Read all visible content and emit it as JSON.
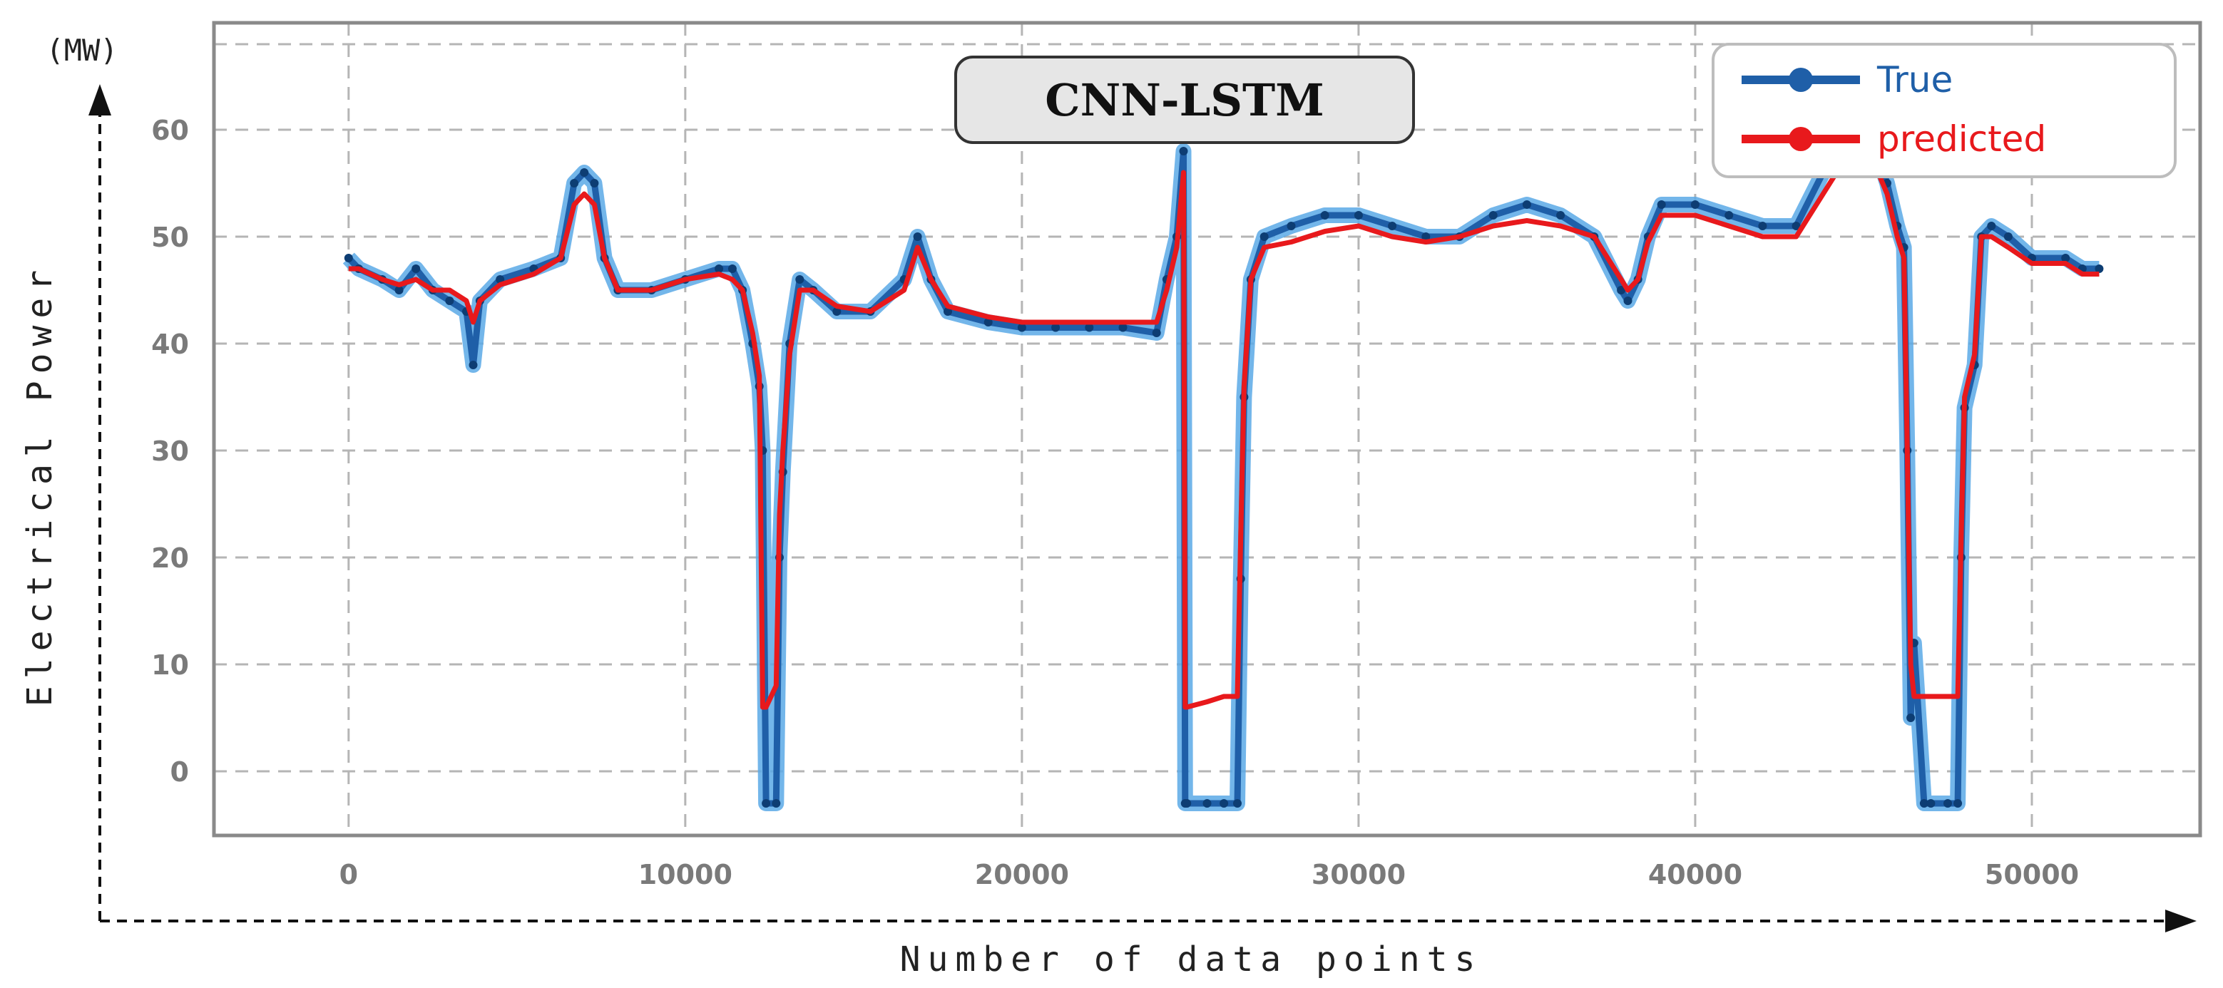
{
  "chart_data": {
    "type": "line",
    "title": "CNN-LSTM",
    "xlabel": "Number of data points",
    "ylabel": "Electrical Power",
    "unit": "(MW)",
    "xlim": [
      -4000,
      55000
    ],
    "ylim": [
      -6,
      70
    ],
    "x_ticks": [
      0,
      10000,
      20000,
      30000,
      40000,
      50000
    ],
    "y_ticks": [
      0,
      10,
      20,
      30,
      40,
      50,
      60
    ],
    "grid": true,
    "legend_position": "top-right",
    "series": [
      {
        "name": "True",
        "color": "#1f5fa8",
        "x": [
          0,
          300,
          1000,
          1500,
          2000,
          2500,
          3000,
          3500,
          3700,
          3900,
          4500,
          5500,
          6300,
          6700,
          7000,
          7300,
          7600,
          8000,
          9000,
          10000,
          11000,
          11400,
          11700,
          12000,
          12200,
          12300,
          12400,
          12700,
          12800,
          12900,
          13100,
          13400,
          13800,
          14500,
          15500,
          16500,
          16900,
          17300,
          17800,
          19000,
          20000,
          21000,
          22000,
          23000,
          24000,
          24300,
          24600,
          24800,
          24850,
          24900,
          25500,
          26000,
          26400,
          26500,
          26600,
          26800,
          27200,
          28000,
          29000,
          30000,
          31000,
          32000,
          33000,
          34000,
          35000,
          36000,
          37000,
          37800,
          38000,
          38300,
          38600,
          39000,
          40000,
          41000,
          42000,
          43000,
          43800,
          44200,
          44800,
          45300,
          45700,
          46000,
          46200,
          46300,
          46400,
          46500,
          46800,
          47000,
          47500,
          47800,
          47900,
          48000,
          48300,
          48500,
          48800,
          49300,
          50000,
          51000,
          51500,
          52000
        ],
        "y": [
          48,
          47,
          46,
          45,
          47,
          45,
          44,
          43,
          38,
          44,
          46,
          47,
          48,
          55,
          56,
          55,
          48,
          45,
          45,
          46,
          47,
          47,
          45,
          40,
          36,
          30,
          -3,
          -3,
          20,
          28,
          40,
          46,
          45,
          43,
          43,
          46,
          50,
          46,
          43,
          42,
          41.5,
          41.5,
          41.5,
          41.5,
          41,
          46,
          50,
          58,
          -3,
          -3,
          -3,
          -3,
          -3,
          18,
          35,
          46,
          50,
          51,
          52,
          52,
          51,
          50,
          50,
          52,
          53,
          52,
          50,
          45,
          44,
          46,
          50,
          53,
          53,
          52,
          51,
          51,
          56,
          58,
          60,
          59,
          55,
          51,
          49,
          30,
          5,
          12,
          -3,
          -3,
          -3,
          -3,
          20,
          34,
          38,
          50,
          51,
          50,
          48,
          48,
          47,
          47
        ]
      },
      {
        "name": "predicted",
        "color": "#e8191c",
        "x": [
          0,
          300,
          1000,
          1500,
          2000,
          2500,
          3000,
          3500,
          3700,
          3900,
          4500,
          5500,
          6300,
          6700,
          7000,
          7300,
          7600,
          8000,
          9000,
          10000,
          11000,
          11400,
          11700,
          12000,
          12200,
          12300,
          12400,
          12700,
          12800,
          12900,
          13100,
          13400,
          13800,
          14500,
          15500,
          16500,
          16900,
          17300,
          17800,
          19000,
          20000,
          21000,
          22000,
          23000,
          24000,
          24300,
          24600,
          24800,
          24850,
          24900,
          25500,
          26000,
          26400,
          26500,
          26600,
          26800,
          27200,
          28000,
          29000,
          30000,
          31000,
          32000,
          33000,
          34000,
          35000,
          36000,
          37000,
          37800,
          38000,
          38300,
          38600,
          39000,
          40000,
          41000,
          42000,
          43000,
          43800,
          44200,
          44800,
          45300,
          45700,
          46000,
          46200,
          46300,
          46400,
          46500,
          46800,
          47000,
          47500,
          47800,
          47900,
          48000,
          48300,
          48500,
          48800,
          49300,
          50000,
          51000,
          51500,
          52000
        ],
        "y": [
          47,
          47,
          46,
          45.5,
          46,
          45,
          45,
          44,
          42,
          44,
          45.5,
          46.5,
          48,
          53,
          54,
          53,
          48,
          45,
          45,
          46,
          46.5,
          46,
          45,
          41,
          37,
          6,
          6,
          8,
          24,
          30,
          39,
          45,
          45,
          43.5,
          43,
          45,
          49,
          46,
          43.5,
          42.5,
          42,
          42,
          42,
          42,
          42,
          45,
          49,
          56,
          6,
          6,
          6.5,
          7,
          7,
          22,
          36,
          46,
          49,
          49.5,
          50.5,
          51,
          50,
          49.5,
          50,
          51,
          51.5,
          51,
          50,
          46,
          45,
          46,
          49.5,
          52,
          52,
          51,
          50,
          50,
          54,
          56,
          57,
          57,
          54,
          50,
          48,
          30,
          10,
          7,
          7,
          7,
          7,
          7,
          22,
          35,
          39,
          50,
          50,
          49,
          47.5,
          47.5,
          46.5,
          46.5
        ]
      }
    ]
  }
}
